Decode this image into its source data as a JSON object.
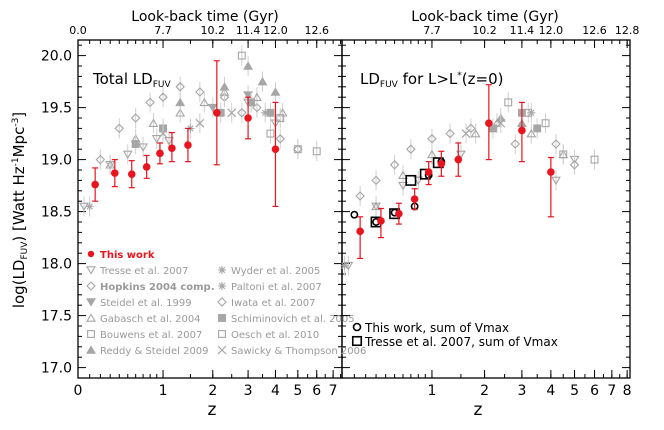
{
  "chart_data": [
    {
      "type": "scatter",
      "title": "Total LD",
      "title_sub": "FUV",
      "xlabel": "z",
      "ylabel_main": "log(LD",
      "ylabel_sub": "FUV",
      "ylabel_rest": ") [Watt Hz",
      "ylabel_sup1": "-1",
      "ylabel_mid": "Mpc",
      "ylabel_sup2": "-3",
      "ylabel_end": "]",
      "top_label": "Look-back time (Gyr)",
      "x_scale": "log(1+z)",
      "xlim": [
        0,
        7.6
      ],
      "ylim": [
        16.9,
        20.15
      ],
      "x_ticks": [
        "0",
        "1",
        "2",
        "3",
        "4",
        "5",
        "6",
        "7"
      ],
      "y_ticks": [
        "17.0",
        "17.5",
        "18.0",
        "18.5",
        "19.0",
        "19.5",
        "20.0"
      ],
      "top_ticks": [
        {
          "z": 0.0,
          "label": "0.0"
        },
        {
          "z": 1.0,
          "label": "7.7"
        },
        {
          "z": 2.0,
          "label": "10.2"
        },
        {
          "z": 3.0,
          "label": "11.4"
        },
        {
          "z": 4.0,
          "label": "12.0"
        },
        {
          "z": 6.0,
          "label": "12.6"
        }
      ],
      "this_work": {
        "name": "This work",
        "color": "#e8141e",
        "points": [
          {
            "z": 0.15,
            "y": 18.76,
            "lo": 18.6,
            "hi": 18.92
          },
          {
            "z": 0.35,
            "y": 18.87,
            "lo": 18.74,
            "hi": 19.0
          },
          {
            "z": 0.55,
            "y": 18.86,
            "lo": 18.73,
            "hi": 18.99
          },
          {
            "z": 0.75,
            "y": 18.93,
            "lo": 18.82,
            "hi": 19.04
          },
          {
            "z": 0.95,
            "y": 19.06,
            "lo": 18.96,
            "hi": 19.16
          },
          {
            "z": 1.15,
            "y": 19.11,
            "lo": 18.98,
            "hi": 19.26
          },
          {
            "z": 1.45,
            "y": 19.14,
            "lo": 18.98,
            "hi": 19.3
          },
          {
            "z": 2.1,
            "y": 19.45,
            "lo": 18.95,
            "hi": 19.95
          },
          {
            "z": 3.0,
            "y": 19.4,
            "lo": 19.2,
            "hi": 19.6
          },
          {
            "z": 4.0,
            "y": 19.1,
            "lo": 18.55,
            "hi": 19.55
          }
        ]
      },
      "literature": [
        {
          "marker": "down-tri-open",
          "points": [
            [
              0.05,
              18.55
            ],
            [
              0.3,
              18.95
            ],
            [
              0.5,
              19.05
            ],
            [
              0.7,
              19.12
            ],
            [
              0.9,
              19.2
            ],
            [
              1.1,
              19.18
            ],
            [
              3.0,
              19.55
            ],
            [
              4.0,
              19.35
            ]
          ]
        },
        {
          "marker": "diamond-open",
          "points": [
            [
              0.2,
              19.0
            ],
            [
              0.4,
              19.3
            ],
            [
              0.6,
              19.4
            ],
            [
              0.8,
              19.55
            ],
            [
              1.0,
              19.6
            ],
            [
              1.3,
              19.7
            ],
            [
              1.7,
              19.65
            ],
            [
              2.3,
              19.6
            ],
            [
              2.8,
              19.45
            ],
            [
              3.3,
              19.5
            ],
            [
              4.2,
              19.2
            ],
            [
              5.0,
              19.1
            ]
          ]
        },
        {
          "marker": "down-tri-filled",
          "points": [
            [
              2.0,
              19.5
            ],
            [
              3.0,
              19.62
            ]
          ]
        },
        {
          "marker": "up-tri-open",
          "points": [
            [
              0.3,
              18.95
            ],
            [
              0.6,
              19.2
            ],
            [
              0.85,
              19.35
            ],
            [
              1.3,
              19.45
            ],
            [
              1.8,
              19.55
            ],
            [
              2.3,
              19.65
            ],
            [
              3.3,
              19.6
            ],
            [
              4.3,
              19.45
            ]
          ]
        },
        {
          "marker": "square-filled",
          "points": [
            [
              0.6,
              19.15
            ],
            [
              1.0,
              19.3
            ],
            [
              2.2,
              19.45
            ],
            [
              3.1,
              19.55
            ],
            [
              3.8,
              19.45
            ]
          ]
        },
        {
          "marker": "square-open",
          "points": [
            [
              2.8,
              20.0
            ],
            [
              3.8,
              19.25
            ],
            [
              5.0,
              19.1
            ],
            [
              6.0,
              19.08
            ],
            [
              4.2,
              19.4
            ]
          ]
        },
        {
          "marker": "up-tri-filled",
          "points": [
            [
              1.3,
              19.55
            ],
            [
              2.3,
              19.7
            ],
            [
              3.0,
              19.9
            ],
            [
              3.5,
              19.75
            ],
            [
              4.0,
              19.65
            ]
          ]
        },
        {
          "marker": "star",
          "points": [
            [
              0.1,
              18.55
            ],
            [
              1.5,
              19.3
            ],
            [
              3.6,
              19.45
            ]
          ]
        },
        {
          "marker": "cross",
          "points": [
            [
              1.0,
              19.25
            ],
            [
              1.7,
              19.35
            ],
            [
              2.5,
              19.45
            ]
          ]
        }
      ],
      "legend": [
        {
          "label": "This work",
          "marker": "filled-circle",
          "color": "#e8141e",
          "bold": true
        },
        {
          "label": "Tresse et al. 2007",
          "marker": "down-tri-open"
        },
        {
          "label": "Wyder et al. 2005",
          "marker": "star"
        },
        {
          "label": "Hopkins 2004 comp.",
          "marker": "diamond-open",
          "bold": true
        },
        {
          "label": "Paltoni et al. 2007",
          "marker": "star"
        },
        {
          "label": "Steidel et al. 1999",
          "marker": "down-tri-filled"
        },
        {
          "label": "Iwata et al. 2007",
          "marker": "diamond-open"
        },
        {
          "label": "Gabasch et al. 2004",
          "marker": "up-tri-open"
        },
        {
          "label": "Schiminovich et al. 2005",
          "marker": "square-filled"
        },
        {
          "label": "Bouwens et al. 2007",
          "marker": "square-open"
        },
        {
          "label": "Oesch et al. 2010",
          "marker": "square-open"
        },
        {
          "label": "Reddy & Steidel 2009",
          "marker": "up-tri-filled"
        },
        {
          "label": "Sawicky & Thompson 2006",
          "marker": "cross"
        }
      ]
    },
    {
      "type": "scatter",
      "title": "LD",
      "title_sub": "FUV",
      "title_rest": " for L>L",
      "title_sup": "*",
      "title_end": "(z=0)",
      "xlabel": "z",
      "top_label": "Look-back time (Gyr)",
      "x_scale": "log(1+z)",
      "xlim": [
        0,
        8.2
      ],
      "ylim": [
        16.9,
        20.15
      ],
      "x_ticks": [
        "1",
        "2",
        "3",
        "4",
        "5",
        "6",
        "7",
        "8"
      ],
      "top_ticks": [
        {
          "z": 1.0,
          "label": "7.7"
        },
        {
          "z": 2.0,
          "label": "10.2"
        },
        {
          "z": 3.0,
          "label": "11.4"
        },
        {
          "z": 4.0,
          "label": "12.0"
        },
        {
          "z": 6.0,
          "label": "12.6"
        },
        {
          "z": 8.0,
          "label": "12.8"
        }
      ],
      "this_work": {
        "name": "This work",
        "color": "#e8141e",
        "points": [
          {
            "z": 0.15,
            "y": 18.31,
            "lo": 18.05,
            "hi": 18.45
          },
          {
            "z": 0.35,
            "y": 18.41,
            "lo": 18.25,
            "hi": 18.53
          },
          {
            "z": 0.55,
            "y": 18.48,
            "lo": 18.38,
            "hi": 18.58
          },
          {
            "z": 0.75,
            "y": 18.62,
            "lo": 18.52,
            "hi": 18.72
          },
          {
            "z": 0.95,
            "y": 18.88,
            "lo": 18.76,
            "hi": 18.98
          },
          {
            "z": 1.15,
            "y": 18.96,
            "lo": 18.84,
            "hi": 19.08
          },
          {
            "z": 1.45,
            "y": 19.0,
            "lo": 18.84,
            "hi": 19.16
          },
          {
            "z": 2.1,
            "y": 19.35,
            "lo": 19.0,
            "hi": 19.72
          },
          {
            "z": 3.0,
            "y": 19.28,
            "lo": 18.98,
            "hi": 19.55
          },
          {
            "z": 4.0,
            "y": 18.88,
            "lo": 18.45,
            "hi": 19.02
          }
        ]
      },
      "vmax_circles": [
        [
          0.1,
          18.47
        ],
        [
          0.3,
          18.4
        ],
        [
          0.5,
          18.49
        ],
        [
          0.75,
          18.55
        ],
        [
          0.95,
          18.85
        ],
        [
          1.15,
          18.98
        ]
      ],
      "vmax_squares": [
        [
          0.3,
          18.4
        ],
        [
          0.5,
          18.48
        ],
        [
          0.7,
          18.8
        ],
        [
          0.9,
          18.86
        ],
        [
          1.1,
          18.97
        ]
      ],
      "literature": [
        {
          "marker": "down-tri-open",
          "points": [
            [
              0.05,
              17.98
            ],
            [
              0.3,
              18.55
            ],
            [
              0.6,
              18.75
            ],
            [
              0.8,
              18.8
            ],
            [
              1.5,
              19.05
            ],
            [
              4.2,
              18.8
            ],
            [
              5.0,
              19.0
            ]
          ]
        },
        {
          "marker": "diamond-open",
          "points": [
            [
              0.15,
              18.65
            ],
            [
              0.3,
              18.8
            ],
            [
              0.5,
              18.95
            ],
            [
              0.7,
              19.1
            ],
            [
              1.0,
              19.2
            ],
            [
              1.3,
              19.25
            ],
            [
              1.7,
              19.3
            ],
            [
              2.8,
              19.15
            ],
            [
              4.2,
              19.15
            ],
            [
              5.0,
              18.95
            ]
          ]
        },
        {
          "marker": "up-tri-open",
          "points": [
            [
              0.3,
              18.55
            ],
            [
              0.6,
              18.85
            ],
            [
              1.0,
              19.05
            ],
            [
              1.8,
              19.25
            ],
            [
              2.3,
              19.35
            ],
            [
              3.3,
              19.25
            ],
            [
              4.5,
              19.05
            ]
          ]
        },
        {
          "marker": "square-open",
          "points": [
            [
              2.6,
              19.55
            ],
            [
              3.8,
              19.35
            ],
            [
              4.5,
              19.05
            ],
            [
              6.0,
              19.0
            ],
            [
              3.2,
              19.45
            ]
          ]
        },
        {
          "marker": "square-filled",
          "points": [
            [
              2.2,
              19.3
            ],
            [
              3.0,
              19.45
            ],
            [
              3.5,
              19.3
            ]
          ]
        },
        {
          "marker": "up-tri-filled",
          "points": [
            [
              2.4,
              19.4
            ],
            [
              3.0,
              19.35
            ]
          ]
        },
        {
          "marker": "star",
          "points": [
            [
              0.02,
              17.98
            ],
            [
              3.3,
              19.45
            ]
          ]
        },
        {
          "marker": "cross",
          "points": [
            [
              2.4,
              19.35
            ],
            [
              1.6,
              19.25
            ]
          ]
        }
      ],
      "legend": [
        {
          "label": "This work, sum of Vmax",
          "marker": "open-circle"
        },
        {
          "label": "Tresse et al. 2007, sum of Vmax",
          "marker": "open-square"
        }
      ]
    }
  ],
  "colors": {
    "this_work": "#e8141e",
    "literature": "#a6a6a6",
    "axes": "#000000"
  }
}
